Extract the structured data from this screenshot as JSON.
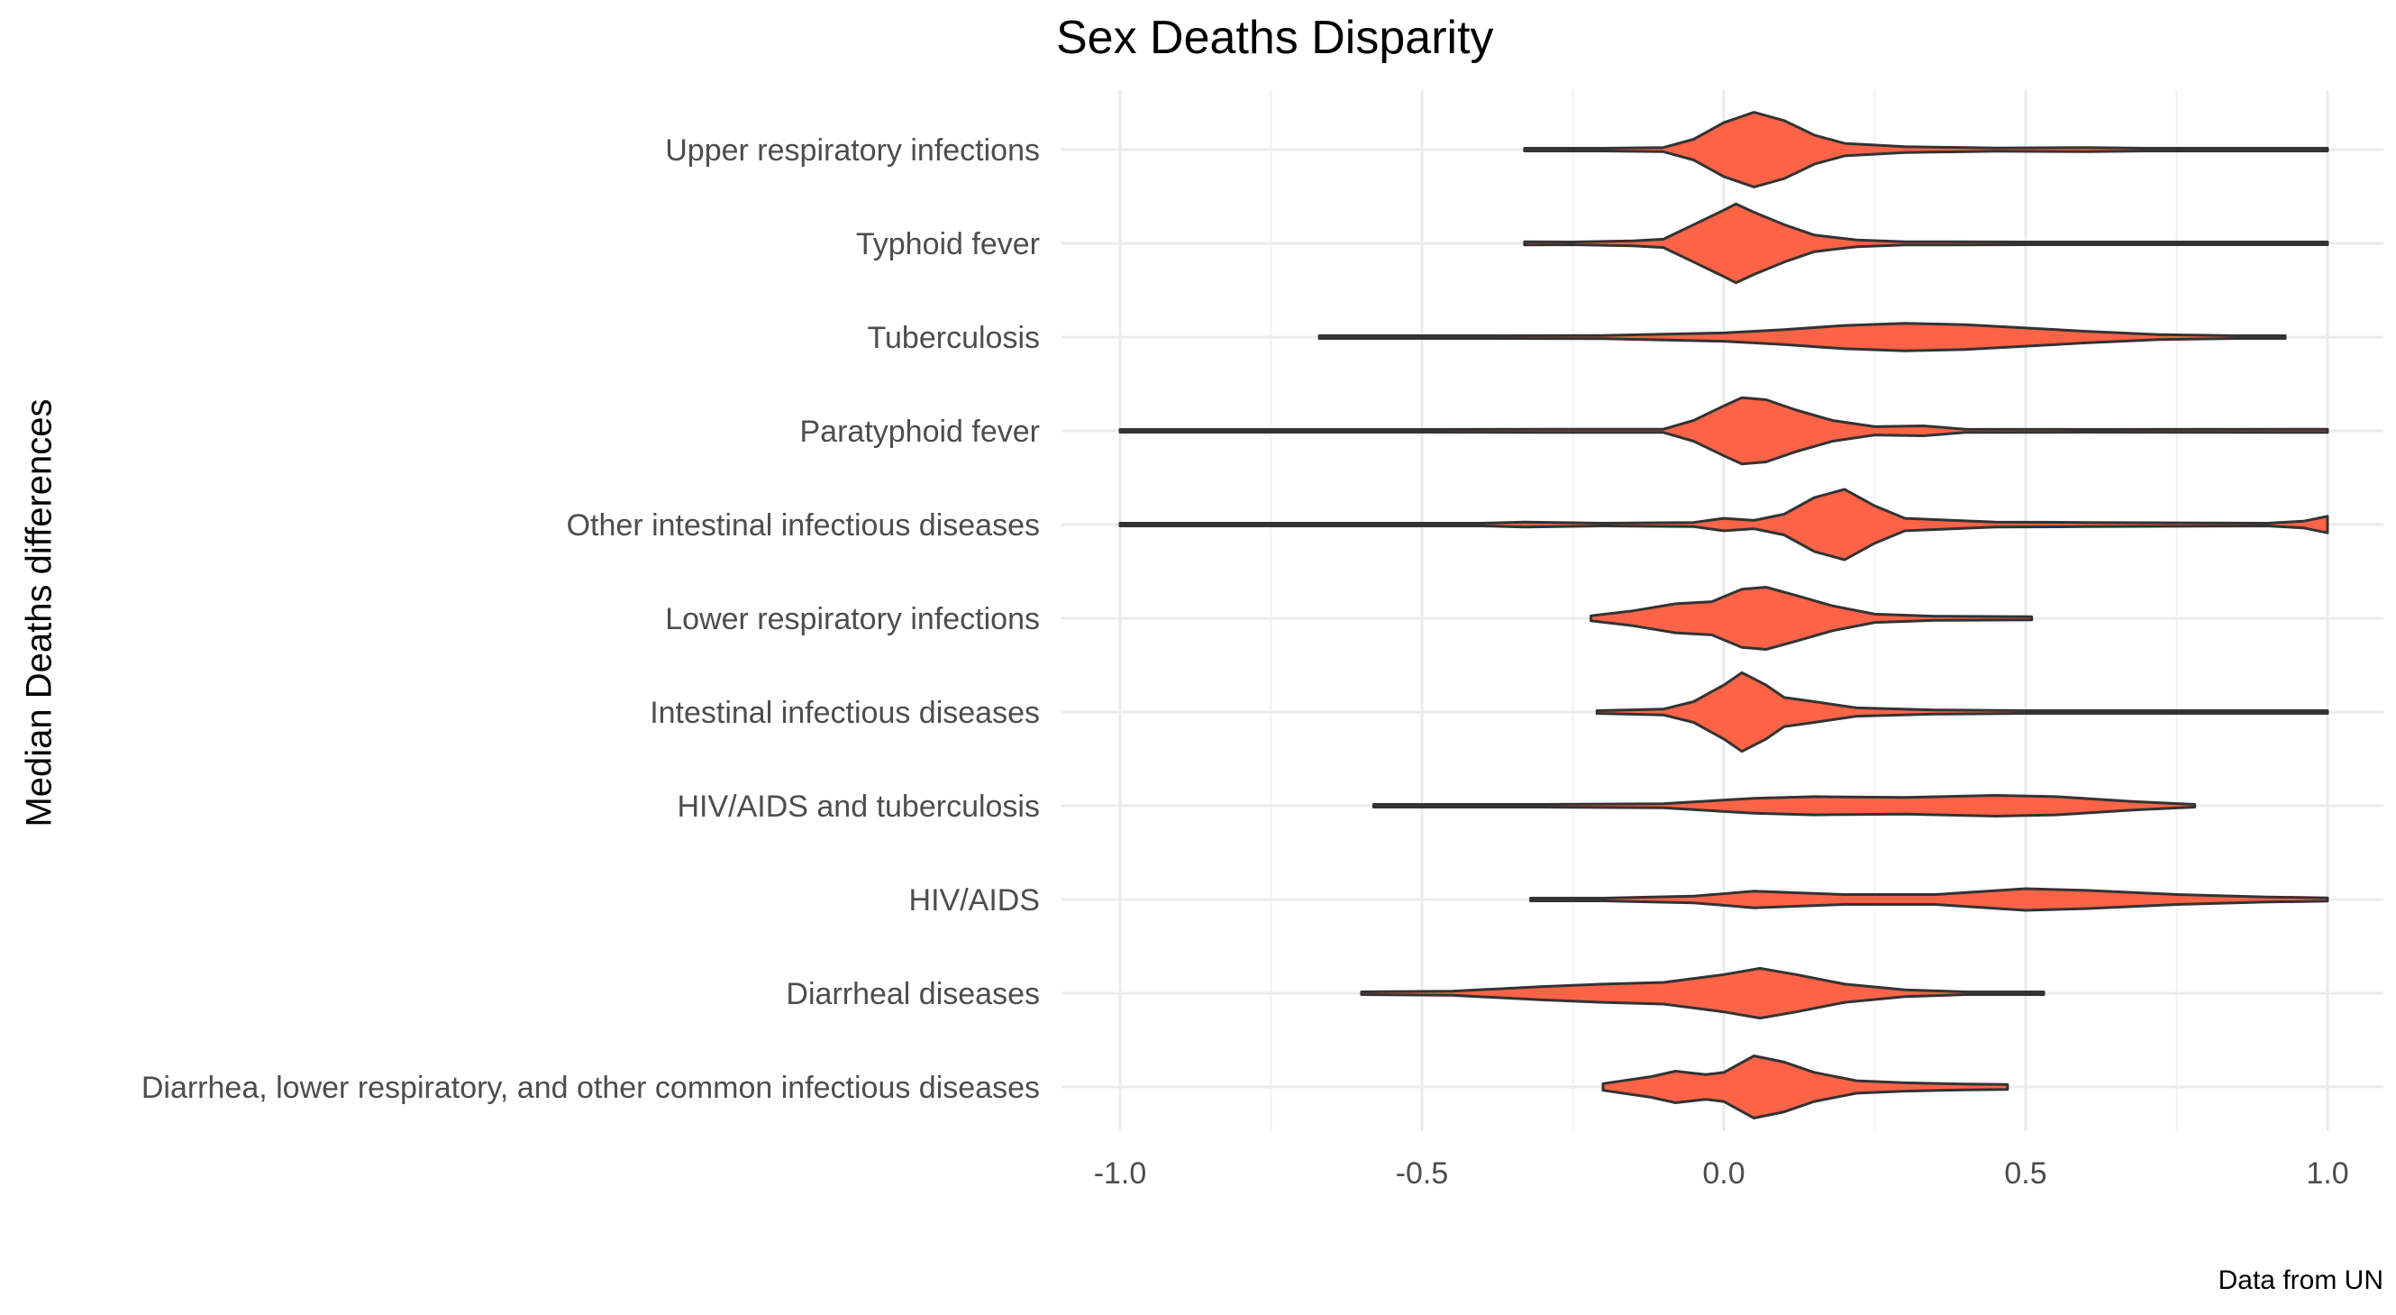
{
  "chart_data": {
    "type": "violin",
    "title": "Sex Deaths Disparity",
    "xlabel": "",
    "ylabel": "Median Deaths differences",
    "caption": "Data from UN",
    "xlim": [
      -1.0,
      1.0
    ],
    "x_ticks": [
      -1.0,
      -0.5,
      0.0,
      0.5,
      1.0
    ],
    "x_tick_labels": [
      "-1.0",
      "-0.5",
      "0.0",
      "0.5",
      "1.0"
    ],
    "grid": true,
    "fill_color": "#FC6347",
    "outline_color": "#333333",
    "categories": [
      "Upper respiratory infections",
      "Typhoid fever",
      "Tuberculosis",
      "Paratyphoid fever",
      "Other intestinal infectious diseases",
      "Lower respiratory infections",
      "Intestinal infectious diseases",
      "HIV/AIDS and tuberculosis",
      "HIV/AIDS",
      "Diarrheal diseases",
      "Diarrhea, lower respiratory, and other common infectious diseases"
    ],
    "series": [
      {
        "category": "Upper respiratory infections",
        "range": [
          -0.33,
          1.0
        ],
        "density": [
          [
            -0.33,
            0.03
          ],
          [
            -0.2,
            0.02
          ],
          [
            -0.1,
            0.05
          ],
          [
            -0.05,
            0.25
          ],
          [
            0.0,
            0.65
          ],
          [
            0.05,
            0.9
          ],
          [
            0.1,
            0.7
          ],
          [
            0.15,
            0.35
          ],
          [
            0.2,
            0.15
          ],
          [
            0.3,
            0.07
          ],
          [
            0.45,
            0.04
          ],
          [
            0.6,
            0.05
          ],
          [
            0.7,
            0.02
          ],
          [
            0.9,
            0.02
          ],
          [
            1.0,
            0.03
          ]
        ]
      },
      {
        "category": "Typhoid fever",
        "range": [
          -0.33,
          1.0
        ],
        "density": [
          [
            -0.33,
            0.04
          ],
          [
            -0.25,
            0.03
          ],
          [
            -0.15,
            0.06
          ],
          [
            -0.1,
            0.1
          ],
          [
            -0.05,
            0.45
          ],
          [
            0.0,
            0.8
          ],
          [
            0.02,
            0.95
          ],
          [
            0.05,
            0.75
          ],
          [
            0.1,
            0.45
          ],
          [
            0.15,
            0.2
          ],
          [
            0.22,
            0.08
          ],
          [
            0.3,
            0.04
          ],
          [
            0.5,
            0.02
          ],
          [
            1.0,
            0.02
          ]
        ]
      },
      {
        "category": "Tuberculosis",
        "range": [
          -0.67,
          0.93
        ],
        "density": [
          [
            -0.67,
            0.01
          ],
          [
            -0.4,
            0.02
          ],
          [
            -0.2,
            0.04
          ],
          [
            0.0,
            0.1
          ],
          [
            0.1,
            0.18
          ],
          [
            0.2,
            0.28
          ],
          [
            0.3,
            0.33
          ],
          [
            0.4,
            0.3
          ],
          [
            0.5,
            0.22
          ],
          [
            0.6,
            0.14
          ],
          [
            0.72,
            0.06
          ],
          [
            0.85,
            0.03
          ],
          [
            0.93,
            0.02
          ]
        ]
      },
      {
        "category": "Paratyphoid fever",
        "range": [
          -1.0,
          1.0
        ],
        "density": [
          [
            -1.0,
            0.03
          ],
          [
            -0.5,
            0.02
          ],
          [
            -0.3,
            0.04
          ],
          [
            -0.1,
            0.04
          ],
          [
            -0.05,
            0.25
          ],
          [
            0.0,
            0.6
          ],
          [
            0.03,
            0.8
          ],
          [
            0.07,
            0.75
          ],
          [
            0.12,
            0.5
          ],
          [
            0.18,
            0.25
          ],
          [
            0.25,
            0.1
          ],
          [
            0.33,
            0.12
          ],
          [
            0.4,
            0.04
          ],
          [
            0.6,
            0.03
          ],
          [
            1.0,
            0.04
          ]
        ]
      },
      {
        "category": "Other intestinal infectious diseases",
        "range": [
          -1.0,
          1.0
        ],
        "density": [
          [
            -1.0,
            0.02
          ],
          [
            -0.4,
            0.02
          ],
          [
            -0.33,
            0.06
          ],
          [
            -0.2,
            0.02
          ],
          [
            -0.05,
            0.05
          ],
          [
            0.0,
            0.15
          ],
          [
            0.05,
            0.1
          ],
          [
            0.1,
            0.25
          ],
          [
            0.15,
            0.65
          ],
          [
            0.2,
            0.85
          ],
          [
            0.25,
            0.45
          ],
          [
            0.3,
            0.15
          ],
          [
            0.35,
            0.12
          ],
          [
            0.45,
            0.06
          ],
          [
            0.6,
            0.05
          ],
          [
            0.9,
            0.03
          ],
          [
            0.96,
            0.08
          ],
          [
            1.0,
            0.2
          ]
        ]
      },
      {
        "category": "Lower respiratory infections",
        "range": [
          -0.22,
          0.51
        ],
        "density": [
          [
            -0.22,
            0.06
          ],
          [
            -0.15,
            0.18
          ],
          [
            -0.08,
            0.35
          ],
          [
            -0.02,
            0.4
          ],
          [
            0.03,
            0.7
          ],
          [
            0.07,
            0.75
          ],
          [
            0.12,
            0.55
          ],
          [
            0.18,
            0.3
          ],
          [
            0.25,
            0.1
          ],
          [
            0.35,
            0.05
          ],
          [
            0.51,
            0.04
          ]
        ]
      },
      {
        "category": "Intestinal infectious diseases",
        "range": [
          -0.21,
          1.0
        ],
        "density": [
          [
            -0.21,
            0.03
          ],
          [
            -0.1,
            0.07
          ],
          [
            -0.05,
            0.25
          ],
          [
            0.0,
            0.65
          ],
          [
            0.03,
            0.95
          ],
          [
            0.07,
            0.65
          ],
          [
            0.1,
            0.35
          ],
          [
            0.15,
            0.25
          ],
          [
            0.22,
            0.1
          ],
          [
            0.35,
            0.05
          ],
          [
            0.5,
            0.03
          ],
          [
            1.0,
            0.02
          ]
        ]
      },
      {
        "category": "HIV/AIDS and tuberculosis",
        "range": [
          -0.58,
          0.78
        ],
        "density": [
          [
            -0.58,
            0.01
          ],
          [
            -0.3,
            0.02
          ],
          [
            -0.1,
            0.05
          ],
          [
            0.05,
            0.18
          ],
          [
            0.15,
            0.22
          ],
          [
            0.3,
            0.2
          ],
          [
            0.45,
            0.25
          ],
          [
            0.55,
            0.22
          ],
          [
            0.68,
            0.1
          ],
          [
            0.78,
            0.02
          ]
        ]
      },
      {
        "category": "HIV/AIDS",
        "range": [
          -0.32,
          1.0
        ],
        "density": [
          [
            -0.32,
            0.01
          ],
          [
            -0.2,
            0.03
          ],
          [
            -0.05,
            0.08
          ],
          [
            0.05,
            0.2
          ],
          [
            0.2,
            0.12
          ],
          [
            0.35,
            0.12
          ],
          [
            0.5,
            0.26
          ],
          [
            0.6,
            0.22
          ],
          [
            0.75,
            0.12
          ],
          [
            0.9,
            0.06
          ],
          [
            1.0,
            0.04
          ]
        ]
      },
      {
        "category": "Diarrheal diseases",
        "range": [
          -0.6,
          0.53
        ],
        "density": [
          [
            -0.6,
            0.02
          ],
          [
            -0.45,
            0.05
          ],
          [
            -0.3,
            0.16
          ],
          [
            -0.2,
            0.22
          ],
          [
            -0.1,
            0.26
          ],
          [
            0.0,
            0.45
          ],
          [
            0.06,
            0.6
          ],
          [
            0.12,
            0.45
          ],
          [
            0.2,
            0.22
          ],
          [
            0.3,
            0.08
          ],
          [
            0.4,
            0.03
          ],
          [
            0.53,
            0.02
          ]
        ]
      },
      {
        "category": "Diarrhea, lower respiratory, and other common infectious diseases",
        "range": [
          -0.2,
          0.47
        ],
        "density": [
          [
            -0.2,
            0.08
          ],
          [
            -0.12,
            0.25
          ],
          [
            -0.08,
            0.38
          ],
          [
            -0.03,
            0.3
          ],
          [
            0.0,
            0.35
          ],
          [
            0.05,
            0.75
          ],
          [
            0.1,
            0.6
          ],
          [
            0.15,
            0.35
          ],
          [
            0.22,
            0.15
          ],
          [
            0.3,
            0.1
          ],
          [
            0.4,
            0.07
          ],
          [
            0.47,
            0.06
          ]
        ]
      }
    ]
  }
}
